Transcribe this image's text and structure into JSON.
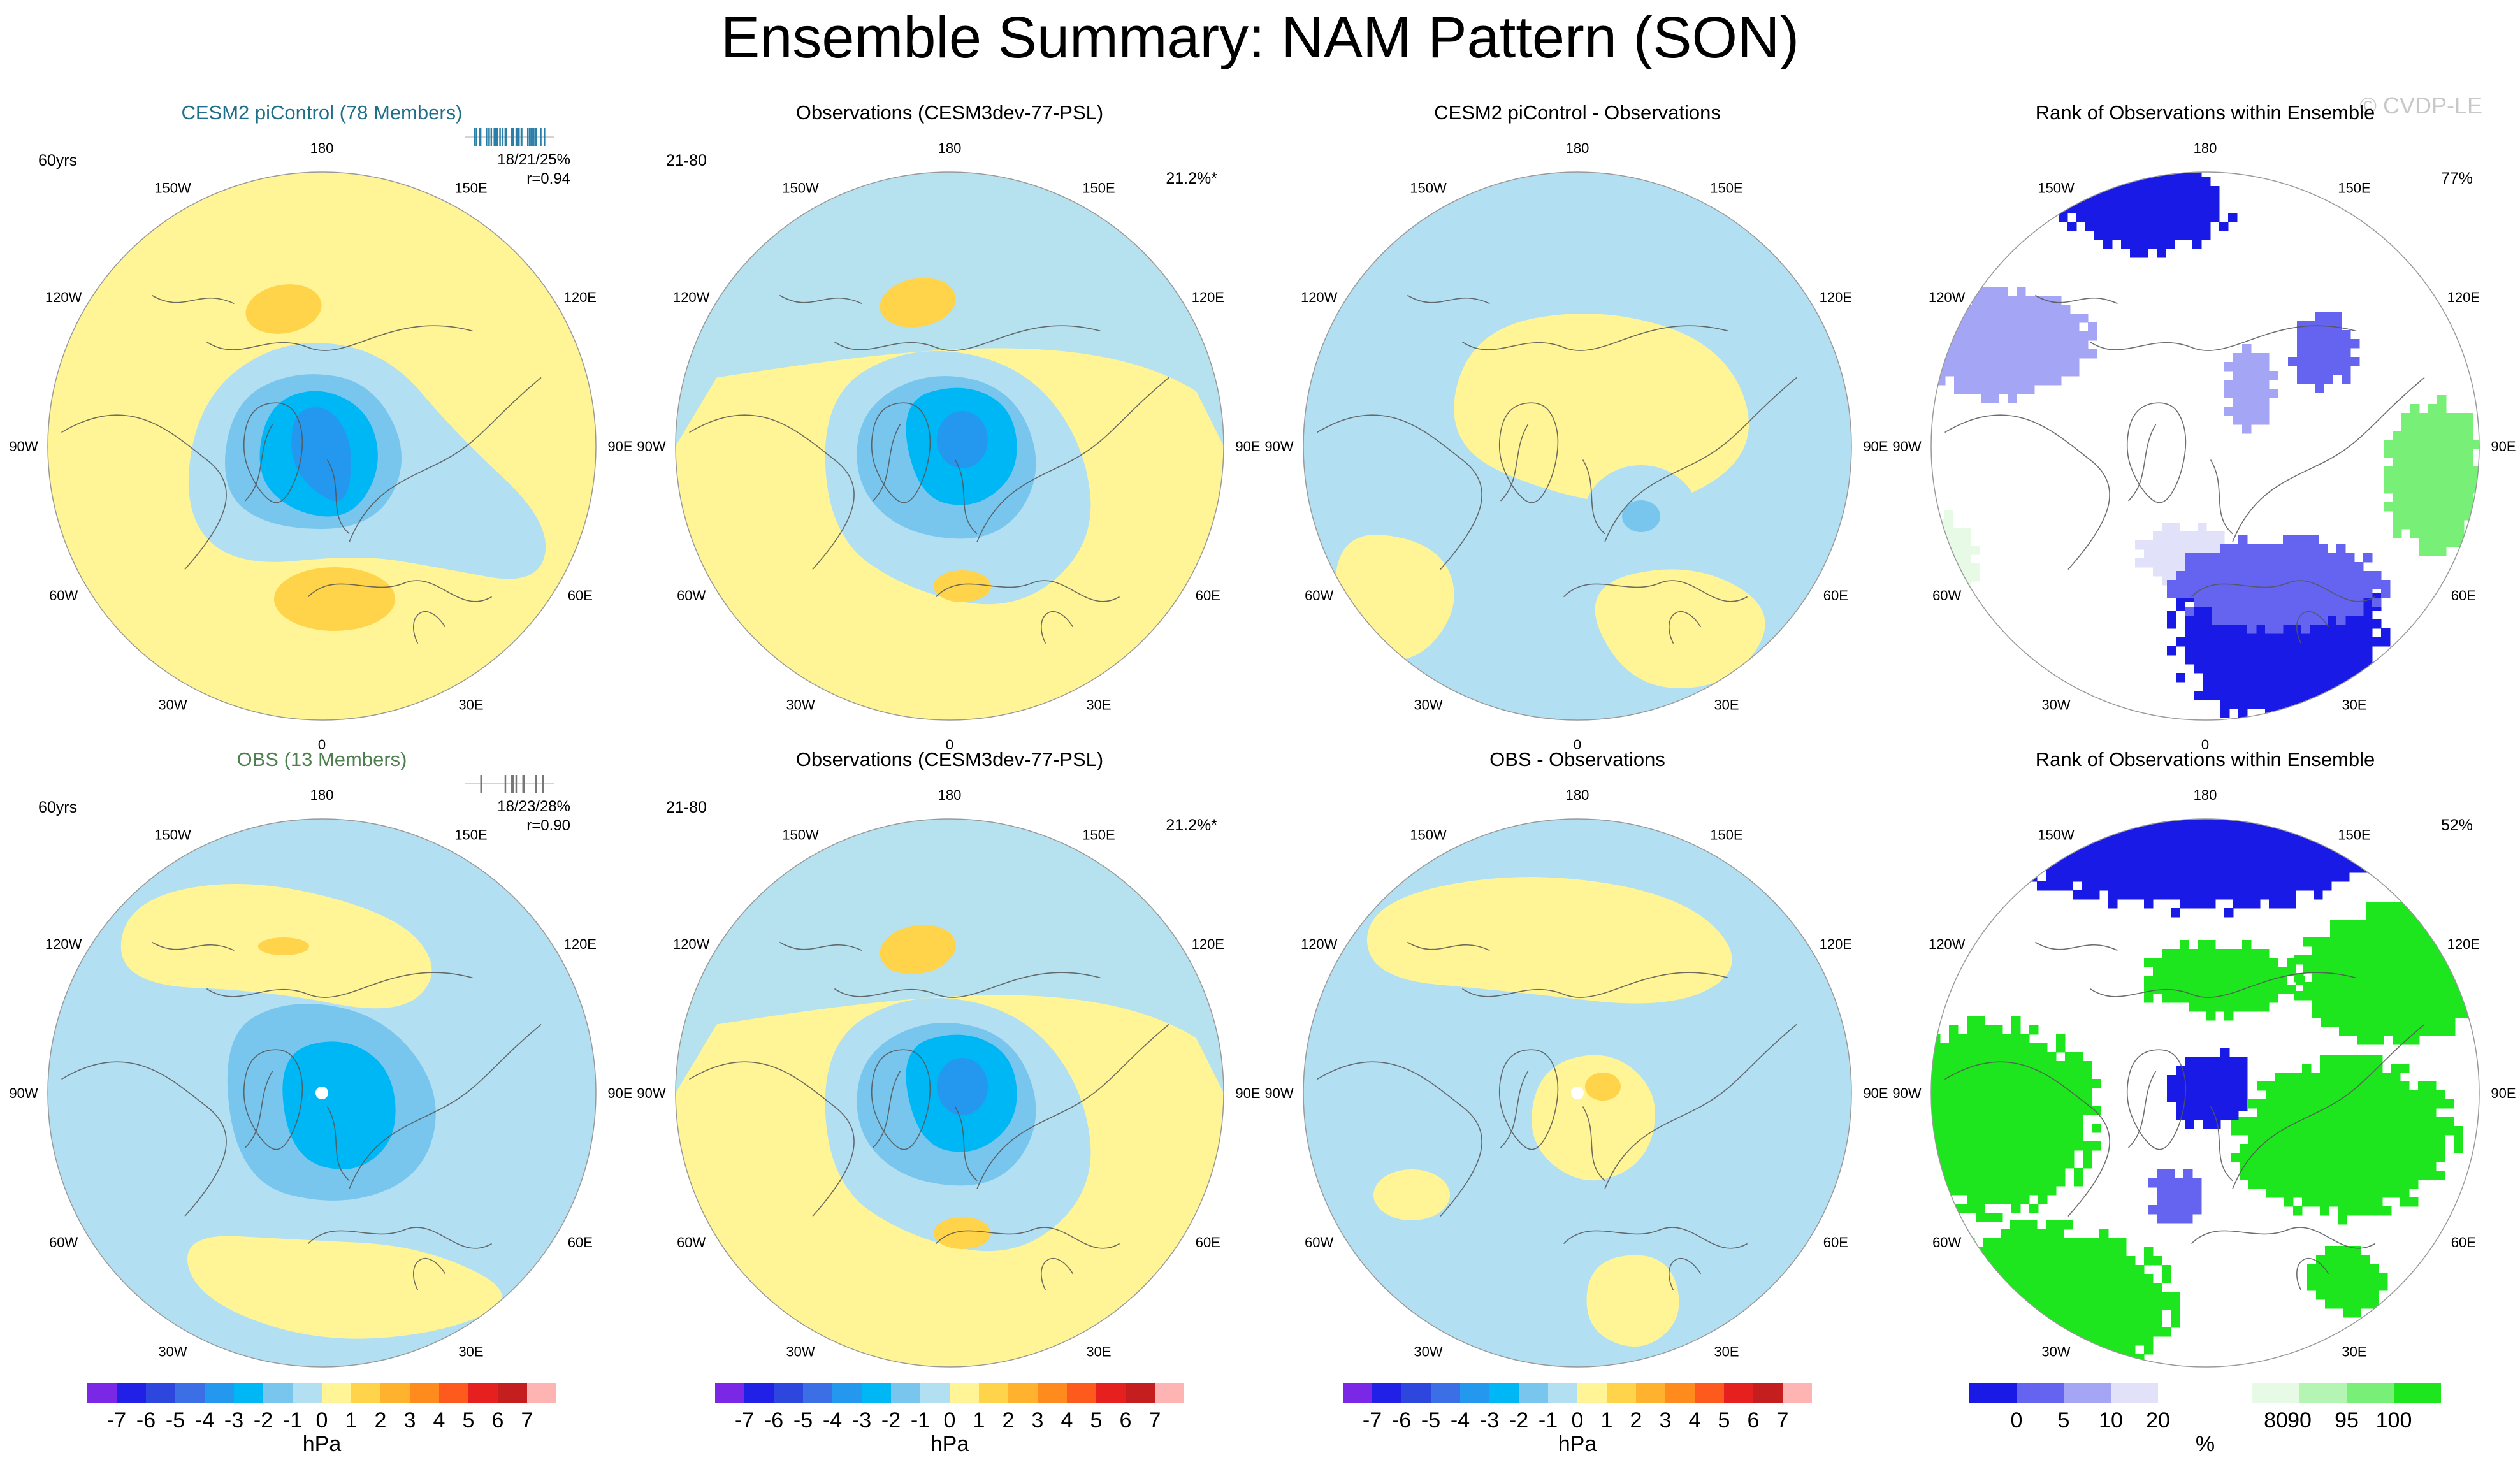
{
  "title": "Ensemble Summary: NAM Pattern (SON)",
  "watermark": "© CVDP-LE",
  "longitude_labels": [
    "180",
    "150E",
    "120E",
    "90E",
    "60E",
    "30E",
    "0",
    "30W",
    "60W",
    "90W",
    "120W",
    "150W"
  ],
  "panels": [
    {
      "title": "CESM2 piControl (78 Members)",
      "title_color": "#1f6f8b",
      "left": "60yrs",
      "right": "",
      "stat1": "18/21/25%",
      "stat2": "r=0.94",
      "spark": "blue",
      "kind": "pattern",
      "variant": "model1"
    },
    {
      "title": "Observations (CESM3dev-77-PSL)",
      "title_color": "#000000",
      "left": "21-80",
      "right": "21.2%*",
      "stat1": "",
      "stat2": "",
      "spark": "none",
      "kind": "pattern",
      "variant": "obs"
    },
    {
      "title": "CESM2 piControl - Observations",
      "title_color": "#000000",
      "left": "",
      "right": "",
      "stat1": "",
      "stat2": "",
      "spark": "none",
      "kind": "pattern",
      "variant": "diff1"
    },
    {
      "title": "Rank of Observations within Ensemble",
      "title_color": "#000000",
      "left": "",
      "right": "77%",
      "stat1": "",
      "stat2": "",
      "spark": "none",
      "kind": "rank",
      "variant": "rank1"
    },
    {
      "title": "OBS (13 Members)",
      "title_color": "#4f7f4f",
      "left": "60yrs",
      "right": "",
      "stat1": "18/23/28%",
      "stat2": "r=0.90",
      "spark": "gray",
      "kind": "pattern",
      "variant": "model2"
    },
    {
      "title": "Observations (CESM3dev-77-PSL)",
      "title_color": "#000000",
      "left": "21-80",
      "right": "21.2%*",
      "stat1": "",
      "stat2": "",
      "spark": "none",
      "kind": "pattern",
      "variant": "obs"
    },
    {
      "title": "OBS - Observations",
      "title_color": "#000000",
      "left": "",
      "right": "",
      "stat1": "",
      "stat2": "",
      "spark": "none",
      "kind": "pattern",
      "variant": "diff2"
    },
    {
      "title": "Rank of Observations within Ensemble",
      "title_color": "#000000",
      "left": "",
      "right": "52%",
      "stat1": "",
      "stat2": "",
      "spark": "none",
      "kind": "rank",
      "variant": "rank2"
    }
  ],
  "colorbar": {
    "colors": [
      "#7a28e6",
      "#2020e6",
      "#2d46dd",
      "#3c6fe6",
      "#2497ef",
      "#00b7f5",
      "#78c6ee",
      "#b2dff2",
      "#fff596",
      "#ffd34a",
      "#ffb22e",
      "#ff8a1e",
      "#ff5a1e",
      "#e6201e",
      "#c41e1e",
      "#ffb4b4"
    ],
    "labels": [
      "-7",
      "-6",
      "-5",
      "-4",
      "-3",
      "-2",
      "-1",
      "0",
      "1",
      "2",
      "3",
      "4",
      "5",
      "6",
      "7"
    ],
    "unit": "hPa"
  },
  "rank_colorbar": {
    "colors": [
      "#1a1ae6",
      "#6464f0",
      "#a5a5f5",
      "#e1e1fa",
      "#ffffff",
      "#ffffff",
      "#e6fae6",
      "#b4f5b4",
      "#78f078",
      "#1ee61e"
    ],
    "labels": [
      "0",
      "5",
      "10",
      "20",
      "80",
      "90",
      "95",
      "100"
    ],
    "unit": "%"
  },
  "chart_data": [
    {
      "type": "map",
      "title": "CESM2 piControl (78 Members)",
      "projection": "north polar stereographic",
      "period": "60yrs",
      "pattern_correlation": 0.94,
      "variance_explained": "18/21/25%",
      "units": "hPa",
      "levels": [
        -7,
        -6,
        -5,
        -4,
        -3,
        -2,
        -1,
        0,
        1,
        2,
        3,
        4,
        5,
        6,
        7
      ]
    },
    {
      "type": "map",
      "title": "Observations (CESM3dev-77-PSL)",
      "projection": "north polar stereographic",
      "period": "21-80",
      "variance_explained": "21.2%*",
      "units": "hPa"
    },
    {
      "type": "map",
      "title": "CESM2 piControl - Observations",
      "projection": "north polar stereographic",
      "units": "hPa"
    },
    {
      "type": "map",
      "title": "Rank of Observations within Ensemble",
      "projection": "north polar stereographic",
      "area_fraction": "77%",
      "units": "%",
      "levels": [
        0,
        5,
        10,
        20,
        80,
        90,
        95,
        100
      ]
    },
    {
      "type": "map",
      "title": "OBS (13 Members)",
      "projection": "north polar stereographic",
      "period": "60yrs",
      "pattern_correlation": 0.9,
      "variance_explained": "18/23/28%",
      "units": "hPa"
    },
    {
      "type": "map",
      "title": "Observations (CESM3dev-77-PSL)",
      "projection": "north polar stereographic",
      "period": "21-80",
      "variance_explained": "21.2%*",
      "units": "hPa"
    },
    {
      "type": "map",
      "title": "OBS - Observations",
      "projection": "north polar stereographic",
      "units": "hPa"
    },
    {
      "type": "map",
      "title": "Rank of Observations within Ensemble",
      "projection": "north polar stereographic",
      "area_fraction": "52%",
      "units": "%"
    }
  ]
}
